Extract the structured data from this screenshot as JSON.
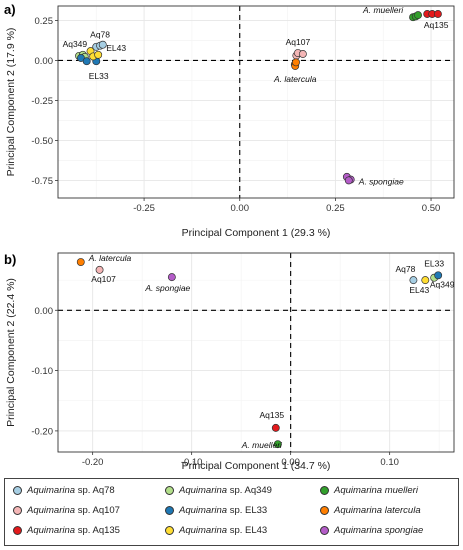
{
  "chart_data": [
    {
      "type": "scatter",
      "panel_tag": "a)",
      "xlabel": "Principal Component 1 (29.3 %)",
      "ylabel": "Principal Component 2 (17.9 %)",
      "xlim": [
        -0.475,
        0.56
      ],
      "ylim": [
        -0.86,
        0.34
      ],
      "xticks": [
        -0.25,
        0.0,
        0.25,
        0.5
      ],
      "xtick_labels": [
        "-0.25",
        "0.00",
        "0.25",
        "0.50"
      ],
      "yticks": [
        -0.75,
        -0.5,
        -0.25,
        0.0,
        0.25
      ],
      "ytick_labels": [
        "-0.75",
        "-0.50",
        "-0.25",
        "0.00",
        "0.25"
      ],
      "grid": true,
      "zero_lines": true,
      "series": [
        {
          "name": "Aquimarina sp. Aq78",
          "color": "#a6cee3",
          "points": [
            [
              -0.375,
              0.085
            ],
            [
              -0.365,
              0.092
            ],
            [
              -0.358,
              0.098
            ]
          ]
        },
        {
          "name": "Aquimarina sp. Aq107",
          "color": "#f4b6b6",
          "points": [
            [
              0.148,
              0.03
            ],
            [
              0.152,
              0.046
            ],
            [
              0.165,
              0.04
            ]
          ]
        },
        {
          "name": "Aquimarina sp. Aq135",
          "color": "#e31a1c",
          "points": [
            [
              0.49,
              0.29
            ],
            [
              0.503,
              0.29
            ],
            [
              0.518,
              0.29
            ]
          ]
        },
        {
          "name": "Aquimarina sp. Aq349",
          "color": "#b2df8a",
          "points": [
            [
              -0.42,
              0.028
            ],
            [
              -0.41,
              0.035
            ],
            [
              -0.405,
              0.022
            ]
          ]
        },
        {
          "name": "Aquimarina sp. EL33",
          "color": "#1f78b4",
          "points": [
            [
              -0.415,
              0.015
            ],
            [
              -0.4,
              -0.005
            ],
            [
              -0.375,
              -0.005
            ]
          ]
        },
        {
          "name": "Aquimarina sp. EL43",
          "color": "#ffdd33",
          "points": [
            [
              -0.39,
              0.058
            ],
            [
              -0.383,
              0.025
            ],
            [
              -0.37,
              0.035
            ]
          ]
        },
        {
          "name": "Aquimarina muelleri",
          "color": "#33a02c",
          "points": [
            [
              0.453,
              0.27
            ],
            [
              0.46,
              0.275
            ],
            [
              0.466,
              0.283
            ]
          ]
        },
        {
          "name": "Aquimarina latercula",
          "color": "#ff7f00",
          "points": [
            [
              0.144,
              -0.025
            ],
            [
              0.145,
              -0.035
            ],
            [
              0.147,
              -0.012
            ]
          ]
        },
        {
          "name": "Aquimarina spongiae",
          "color": "#b45cc8",
          "points": [
            [
              0.28,
              -0.728
            ],
            [
              0.29,
              -0.745
            ],
            [
              0.285,
              -0.75
            ]
          ]
        }
      ],
      "annotations": [
        {
          "text": "A. muelleri",
          "italic": true
        },
        {
          "text": "Aq135",
          "italic": false
        },
        {
          "text": "Aq107",
          "italic": false
        },
        {
          "text": "A. latercula",
          "italic": true
        },
        {
          "text": "A. spongiae",
          "italic": true
        },
        {
          "text": "Aq78",
          "italic": false
        },
        {
          "text": "Aq349",
          "italic": false
        },
        {
          "text": "EL43",
          "italic": false
        },
        {
          "text": "EL33",
          "italic": false
        }
      ]
    },
    {
      "type": "scatter",
      "panel_tag": "b)",
      "xlabel": "Principal Component 1 (34.7 %)",
      "ylabel": "Principal Component 2 (22.4 %)",
      "xlim": [
        -0.235,
        0.165
      ],
      "ylim": [
        -0.235,
        0.095
      ],
      "xticks": [
        -0.2,
        -0.1,
        0.0,
        0.1
      ],
      "xtick_labels": [
        "-0.20",
        "-0.10",
        "0.00",
        "0.10"
      ],
      "yticks": [
        -0.2,
        -0.1,
        0.0
      ],
      "ytick_labels": [
        "-0.20",
        "-0.10",
        "0.00"
      ],
      "grid": true,
      "zero_lines": true,
      "series": [
        {
          "name": "Aquimarina sp. Aq78",
          "color": "#a6cee3",
          "points": [
            [
              0.124,
              0.05
            ]
          ]
        },
        {
          "name": "Aquimarina sp. Aq107",
          "color": "#f4b6b6",
          "points": [
            [
              -0.193,
              0.067
            ]
          ]
        },
        {
          "name": "Aquimarina sp. Aq135",
          "color": "#e31a1c",
          "points": [
            [
              -0.015,
              -0.195
            ]
          ]
        },
        {
          "name": "Aquimarina sp. Aq349",
          "color": "#b2df8a",
          "points": [
            [
              0.145,
              0.054
            ]
          ]
        },
        {
          "name": "Aquimarina sp. EL33",
          "color": "#1f78b4",
          "points": [
            [
              0.149,
              0.058
            ]
          ]
        },
        {
          "name": "Aquimarina sp. EL43",
          "color": "#ffdd33",
          "points": [
            [
              0.136,
              0.05
            ]
          ]
        },
        {
          "name": "Aquimarina muelleri",
          "color": "#33a02c",
          "points": [
            [
              -0.013,
              -0.222
            ]
          ]
        },
        {
          "name": "Aquimarina latercula",
          "color": "#ff7f00",
          "points": [
            [
              -0.212,
              0.08
            ]
          ]
        },
        {
          "name": "Aquimarina spongiae",
          "color": "#b45cc8",
          "points": [
            [
              -0.12,
              0.055
            ]
          ]
        }
      ],
      "annotations": [
        {
          "text": "A. latercula",
          "italic": true
        },
        {
          "text": "Aq107",
          "italic": false
        },
        {
          "text": "A. spongiae",
          "italic": true
        },
        {
          "text": "Aq78",
          "italic": false
        },
        {
          "text": "EL33",
          "italic": false
        },
        {
          "text": "EL43",
          "italic": false
        },
        {
          "text": "Aq349",
          "italic": false
        },
        {
          "text": "Aq135",
          "italic": false
        },
        {
          "text": "A. muelleri",
          "italic": true
        }
      ]
    }
  ],
  "legend": {
    "placement": "bottom",
    "items": [
      {
        "genus": "Aquimarina",
        "suffix": " sp. Aq78",
        "color": "#a6cee3"
      },
      {
        "genus": "Aquimarina",
        "suffix": " sp. Aq349",
        "color": "#b2df8a"
      },
      {
        "genus": "Aquimarina",
        "suffix": " muelleri",
        "color": "#33a02c",
        "all_italic": true
      },
      {
        "genus": "Aquimarina",
        "suffix": " sp. Aq107",
        "color": "#f4b6b6"
      },
      {
        "genus": "Aquimarina",
        "suffix": " sp. EL33",
        "color": "#1f78b4"
      },
      {
        "genus": "Aquimarina",
        "suffix": " latercula",
        "color": "#ff7f00",
        "all_italic": true
      },
      {
        "genus": "Aquimarina",
        "suffix": " sp. Aq135",
        "color": "#e31a1c"
      },
      {
        "genus": "Aquimarina",
        "suffix": " sp. EL43",
        "color": "#ffdd33"
      },
      {
        "genus": "Aquimarina",
        "suffix": " spongiae",
        "color": "#b45cc8",
        "all_italic": true
      }
    ]
  }
}
